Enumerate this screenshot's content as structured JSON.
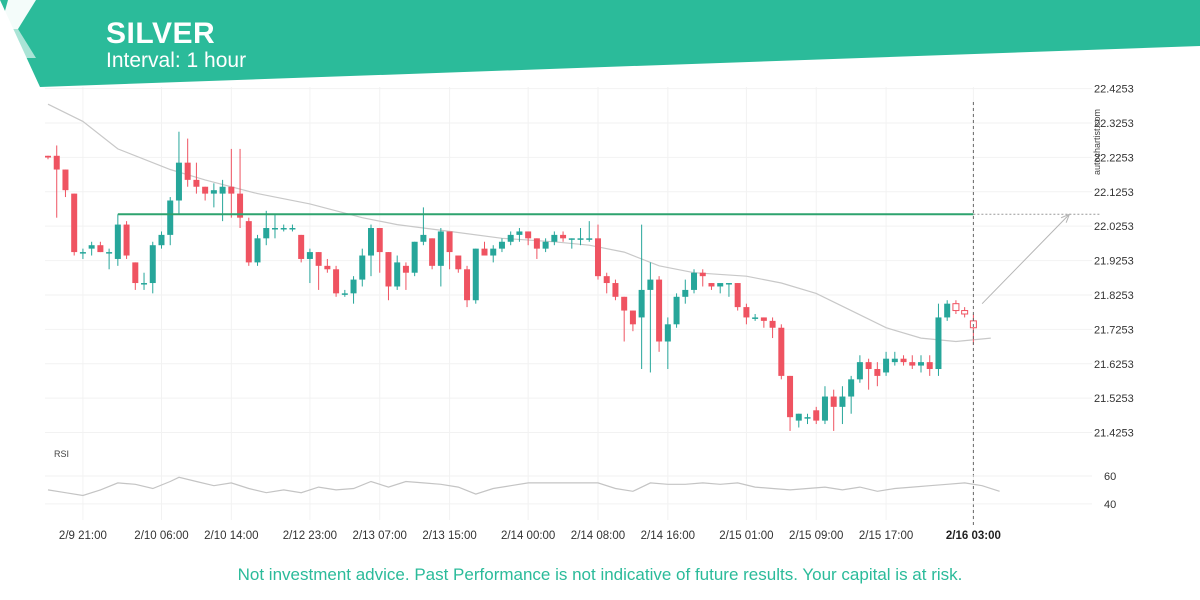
{
  "header": {
    "symbol": "SILVER",
    "interval": "Interval: 1 hour"
  },
  "watermark": "autochartist.com",
  "footer": {
    "disclaimer": "Not investment advice. Past Performance is not indicative of future results. Your capital is at risk."
  },
  "colors": {
    "brand": "#2bbb9a",
    "bull": "#26a69a",
    "bear": "#ef5361",
    "level": "#2ea36f",
    "ma": "#c8c8c8"
  },
  "chart_data": {
    "type": "candlestick",
    "title": "SILVER",
    "subtitle": "Interval: 1 hour",
    "ylim": [
      21.36,
      22.43
    ],
    "y_ticks": [
      22.4253,
      22.3253,
      22.2253,
      22.1253,
      22.0253,
      21.9253,
      21.8253,
      21.7253,
      21.6253,
      21.5253,
      21.4253
    ],
    "x_ticks": [
      {
        "label": "2/9 21:00",
        "index": 4
      },
      {
        "label": "2/10 06:00",
        "index": 13
      },
      {
        "label": "2/10 14:00",
        "index": 21
      },
      {
        "label": "2/12 23:00",
        "index": 30
      },
      {
        "label": "2/13 07:00",
        "index": 38
      },
      {
        "label": "2/13 15:00",
        "index": 46
      },
      {
        "label": "2/14 00:00",
        "index": 55
      },
      {
        "label": "2/14 08:00",
        "index": 63
      },
      {
        "label": "2/14 16:00",
        "index": 71
      },
      {
        "label": "2/15 01:00",
        "index": 80
      },
      {
        "label": "2/15 09:00",
        "index": 88
      },
      {
        "label": "2/15 17:00",
        "index": 96
      },
      {
        "label": "2/16 03:00",
        "index": 106,
        "highlight": true
      }
    ],
    "candles": [
      {
        "o": 22.23,
        "h": 22.23,
        "l": 22.22,
        "c": 22.225
      },
      {
        "o": 22.23,
        "h": 22.26,
        "l": 22.05,
        "c": 22.19
      },
      {
        "o": 22.19,
        "h": 22.19,
        "l": 22.11,
        "c": 22.13
      },
      {
        "o": 22.12,
        "h": 22.12,
        "l": 21.94,
        "c": 21.95
      },
      {
        "o": 21.95,
        "h": 21.96,
        "l": 21.93,
        "c": 21.95
      },
      {
        "o": 21.96,
        "h": 21.98,
        "l": 21.94,
        "c": 21.97
      },
      {
        "o": 21.97,
        "h": 21.98,
        "l": 21.95,
        "c": 21.95
      },
      {
        "o": 21.95,
        "h": 21.96,
        "l": 21.9,
        "c": 21.95
      },
      {
        "o": 21.93,
        "h": 22.06,
        "l": 21.91,
        "c": 22.03
      },
      {
        "o": 22.03,
        "h": 22.04,
        "l": 21.93,
        "c": 21.94
      },
      {
        "o": 21.92,
        "h": 21.92,
        "l": 21.84,
        "c": 21.86
      },
      {
        "o": 21.86,
        "h": 21.89,
        "l": 21.84,
        "c": 21.86
      },
      {
        "o": 21.86,
        "h": 21.98,
        "l": 21.83,
        "c": 21.97
      },
      {
        "o": 21.97,
        "h": 22.01,
        "l": 21.96,
        "c": 22.0
      },
      {
        "o": 22.0,
        "h": 22.11,
        "l": 21.97,
        "c": 22.1
      },
      {
        "o": 22.1,
        "h": 22.3,
        "l": 22.06,
        "c": 22.21
      },
      {
        "o": 22.21,
        "h": 22.28,
        "l": 22.14,
        "c": 22.16
      },
      {
        "o": 22.16,
        "h": 22.21,
        "l": 22.12,
        "c": 22.14
      },
      {
        "o": 22.14,
        "h": 22.14,
        "l": 22.1,
        "c": 22.12
      },
      {
        "o": 22.12,
        "h": 22.15,
        "l": 22.08,
        "c": 22.13
      },
      {
        "o": 22.12,
        "h": 22.16,
        "l": 22.04,
        "c": 22.14
      },
      {
        "o": 22.14,
        "h": 22.25,
        "l": 22.05,
        "c": 22.12
      },
      {
        "o": 22.12,
        "h": 22.25,
        "l": 22.02,
        "c": 22.05
      },
      {
        "o": 22.04,
        "h": 22.05,
        "l": 21.91,
        "c": 21.92
      },
      {
        "o": 21.92,
        "h": 22.0,
        "l": 21.91,
        "c": 21.99
      },
      {
        "o": 21.99,
        "h": 22.07,
        "l": 21.97,
        "c": 22.02
      },
      {
        "o": 22.02,
        "h": 22.06,
        "l": 21.99,
        "c": 22.02
      },
      {
        "o": 22.02,
        "h": 22.03,
        "l": 22.01,
        "c": 22.02
      },
      {
        "o": 22.02,
        "h": 22.03,
        "l": 22.01,
        "c": 22.02
      },
      {
        "o": 22.0,
        "h": 22.0,
        "l": 21.92,
        "c": 21.93
      },
      {
        "o": 21.93,
        "h": 21.96,
        "l": 21.86,
        "c": 21.95
      },
      {
        "o": 21.95,
        "h": 21.95,
        "l": 21.84,
        "c": 21.91
      },
      {
        "o": 21.91,
        "h": 21.93,
        "l": 21.89,
        "c": 21.9
      },
      {
        "o": 21.9,
        "h": 21.91,
        "l": 21.82,
        "c": 21.83
      },
      {
        "o": 21.83,
        "h": 21.84,
        "l": 21.82,
        "c": 21.83
      },
      {
        "o": 21.83,
        "h": 21.88,
        "l": 21.8,
        "c": 21.87
      },
      {
        "o": 21.87,
        "h": 21.96,
        "l": 21.85,
        "c": 21.94
      },
      {
        "o": 21.94,
        "h": 22.03,
        "l": 21.88,
        "c": 22.02
      },
      {
        "o": 22.02,
        "h": 22.02,
        "l": 21.89,
        "c": 21.95
      },
      {
        "o": 21.95,
        "h": 21.95,
        "l": 21.81,
        "c": 21.85
      },
      {
        "o": 21.85,
        "h": 21.94,
        "l": 21.84,
        "c": 21.92
      },
      {
        "o": 21.91,
        "h": 21.92,
        "l": 21.84,
        "c": 21.89
      },
      {
        "o": 21.89,
        "h": 21.98,
        "l": 21.88,
        "c": 21.98
      },
      {
        "o": 21.98,
        "h": 22.08,
        "l": 21.97,
        "c": 22.0
      },
      {
        "o": 21.99,
        "h": 21.99,
        "l": 21.9,
        "c": 21.91
      },
      {
        "o": 21.91,
        "h": 22.02,
        "l": 21.85,
        "c": 22.01
      },
      {
        "o": 22.01,
        "h": 22.01,
        "l": 21.9,
        "c": 21.95
      },
      {
        "o": 21.94,
        "h": 21.94,
        "l": 21.89,
        "c": 21.9
      },
      {
        "o": 21.9,
        "h": 21.91,
        "l": 21.79,
        "c": 21.81
      },
      {
        "o": 21.81,
        "h": 21.96,
        "l": 21.8,
        "c": 21.96
      },
      {
        "o": 21.96,
        "h": 21.98,
        "l": 21.95,
        "c": 21.94
      },
      {
        "o": 21.94,
        "h": 21.97,
        "l": 21.92,
        "c": 21.96
      },
      {
        "o": 21.96,
        "h": 21.99,
        "l": 21.95,
        "c": 21.98
      },
      {
        "o": 21.98,
        "h": 22.01,
        "l": 21.97,
        "c": 22.0
      },
      {
        "o": 22.0,
        "h": 22.02,
        "l": 21.98,
        "c": 22.01
      },
      {
        "o": 22.01,
        "h": 22.01,
        "l": 21.97,
        "c": 21.99
      },
      {
        "o": 21.99,
        "h": 21.99,
        "l": 21.93,
        "c": 21.96
      },
      {
        "o": 21.96,
        "h": 21.99,
        "l": 21.95,
        "c": 21.98
      },
      {
        "o": 21.98,
        "h": 22.01,
        "l": 21.97,
        "c": 22.0
      },
      {
        "o": 22.0,
        "h": 22.01,
        "l": 21.98,
        "c": 21.99
      },
      {
        "o": 21.99,
        "h": 21.99,
        "l": 21.96,
        "c": 21.99
      },
      {
        "o": 21.99,
        "h": 22.02,
        "l": 21.97,
        "c": 21.99
      },
      {
        "o": 21.99,
        "h": 22.04,
        "l": 21.98,
        "c": 21.99
      },
      {
        "o": 21.99,
        "h": 22.03,
        "l": 21.87,
        "c": 21.88
      },
      {
        "o": 21.88,
        "h": 21.89,
        "l": 21.83,
        "c": 21.86
      },
      {
        "o": 21.86,
        "h": 21.87,
        "l": 21.81,
        "c": 21.82
      },
      {
        "o": 21.82,
        "h": 21.82,
        "l": 21.69,
        "c": 21.78
      },
      {
        "o": 21.78,
        "h": 21.78,
        "l": 21.72,
        "c": 21.74
      },
      {
        "o": 21.76,
        "h": 22.03,
        "l": 21.61,
        "c": 21.84
      },
      {
        "o": 21.84,
        "h": 21.92,
        "l": 21.6,
        "c": 21.87
      },
      {
        "o": 21.87,
        "h": 21.88,
        "l": 21.66,
        "c": 21.69
      },
      {
        "o": 21.69,
        "h": 21.76,
        "l": 21.61,
        "c": 21.74
      },
      {
        "o": 21.74,
        "h": 21.83,
        "l": 21.73,
        "c": 21.82
      },
      {
        "o": 21.82,
        "h": 21.87,
        "l": 21.8,
        "c": 21.84
      },
      {
        "o": 21.84,
        "h": 21.9,
        "l": 21.83,
        "c": 21.89
      },
      {
        "o": 21.89,
        "h": 21.9,
        "l": 21.85,
        "c": 21.88
      },
      {
        "o": 21.86,
        "h": 21.86,
        "l": 21.84,
        "c": 21.85
      },
      {
        "o": 21.85,
        "h": 21.85,
        "l": 21.83,
        "c": 21.86
      },
      {
        "o": 21.86,
        "h": 21.86,
        "l": 21.82,
        "c": 21.86
      },
      {
        "o": 21.86,
        "h": 21.86,
        "l": 21.78,
        "c": 21.79
      },
      {
        "o": 21.79,
        "h": 21.8,
        "l": 21.74,
        "c": 21.76
      },
      {
        "o": 21.76,
        "h": 21.77,
        "l": 21.75,
        "c": 21.76
      },
      {
        "o": 21.76,
        "h": 21.76,
        "l": 21.73,
        "c": 21.75
      },
      {
        "o": 21.75,
        "h": 21.76,
        "l": 21.7,
        "c": 21.73
      },
      {
        "o": 21.73,
        "h": 21.74,
        "l": 21.58,
        "c": 21.59
      },
      {
        "o": 21.59,
        "h": 21.59,
        "l": 21.43,
        "c": 21.47
      },
      {
        "o": 21.46,
        "h": 21.48,
        "l": 21.44,
        "c": 21.48
      },
      {
        "o": 21.47,
        "h": 21.48,
        "l": 21.45,
        "c": 21.47
      },
      {
        "o": 21.49,
        "h": 21.5,
        "l": 21.45,
        "c": 21.46
      },
      {
        "o": 21.46,
        "h": 21.56,
        "l": 21.45,
        "c": 21.53
      },
      {
        "o": 21.53,
        "h": 21.55,
        "l": 21.43,
        "c": 21.5
      },
      {
        "o": 21.5,
        "h": 21.56,
        "l": 21.45,
        "c": 21.53
      },
      {
        "o": 21.53,
        "h": 21.59,
        "l": 21.48,
        "c": 21.58
      },
      {
        "o": 21.58,
        "h": 21.65,
        "l": 21.57,
        "c": 21.63
      },
      {
        "o": 21.63,
        "h": 21.64,
        "l": 21.55,
        "c": 21.61
      },
      {
        "o": 21.61,
        "h": 21.63,
        "l": 21.56,
        "c": 21.59
      },
      {
        "o": 21.6,
        "h": 21.66,
        "l": 21.59,
        "c": 21.64
      },
      {
        "o": 21.63,
        "h": 21.66,
        "l": 21.62,
        "c": 21.64
      },
      {
        "o": 21.64,
        "h": 21.65,
        "l": 21.62,
        "c": 21.63
      },
      {
        "o": 21.63,
        "h": 21.65,
        "l": 21.61,
        "c": 21.62
      },
      {
        "o": 21.62,
        "h": 21.65,
        "l": 21.6,
        "c": 21.63
      },
      {
        "o": 21.63,
        "h": 21.65,
        "l": 21.59,
        "c": 21.61
      },
      {
        "o": 21.61,
        "h": 21.8,
        "l": 21.59,
        "c": 21.76
      },
      {
        "o": 21.76,
        "h": 21.81,
        "l": 21.75,
        "c": 21.8
      },
      {
        "o": 21.8,
        "h": 21.81,
        "l": 21.77,
        "c": 21.78
      },
      {
        "o": 21.78,
        "h": 21.79,
        "l": 21.76,
        "c": 21.77
      },
      {
        "o": 21.75,
        "h": 21.77,
        "l": 21.68,
        "c": 21.73
      }
    ],
    "moving_average": [
      [
        0,
        22.38
      ],
      [
        4,
        22.33
      ],
      [
        8,
        22.25
      ],
      [
        14,
        22.19
      ],
      [
        18,
        22.16
      ],
      [
        24,
        22.12
      ],
      [
        30,
        22.09
      ],
      [
        36,
        22.05
      ],
      [
        40,
        22.03
      ],
      [
        46,
        22.01
      ],
      [
        52,
        21.99
      ],
      [
        58,
        21.98
      ],
      [
        62,
        21.97
      ],
      [
        66,
        21.95
      ],
      [
        70,
        21.91
      ],
      [
        74,
        21.89
      ],
      [
        80,
        21.88
      ],
      [
        84,
        21.86
      ],
      [
        88,
        21.83
      ],
      [
        92,
        21.78
      ],
      [
        96,
        21.73
      ],
      [
        100,
        21.7
      ],
      [
        104,
        21.69
      ],
      [
        108,
        21.7
      ]
    ],
    "resistance_level": {
      "value": 22.06,
      "start_index": 8
    },
    "forecast_arrow": {
      "from": [
        107,
        21.8
      ],
      "to": [
        117,
        22.06
      ]
    },
    "marker_index": 106,
    "rsi": {
      "label": "RSI",
      "ticks": [
        60,
        40
      ],
      "ylim": [
        32,
        70
      ],
      "values": [
        [
          0,
          50
        ],
        [
          2,
          48
        ],
        [
          4,
          46
        ],
        [
          6,
          50
        ],
        [
          8,
          55
        ],
        [
          10,
          54
        ],
        [
          12,
          51
        ],
        [
          14,
          56
        ],
        [
          15,
          59
        ],
        [
          17,
          56
        ],
        [
          19,
          53
        ],
        [
          21,
          55
        ],
        [
          23,
          51
        ],
        [
          25,
          48
        ],
        [
          27,
          50
        ],
        [
          29,
          48
        ],
        [
          31,
          52
        ],
        [
          33,
          50
        ],
        [
          35,
          51
        ],
        [
          37,
          56
        ],
        [
          39,
          52
        ],
        [
          41,
          56
        ],
        [
          43,
          55
        ],
        [
          45,
          54
        ],
        [
          47,
          52
        ],
        [
          49,
          47
        ],
        [
          51,
          51
        ],
        [
          53,
          53
        ],
        [
          55,
          55
        ],
        [
          57,
          55
        ],
        [
          59,
          55
        ],
        [
          61,
          55
        ],
        [
          63,
          55
        ],
        [
          65,
          51
        ],
        [
          67,
          49
        ],
        [
          69,
          55
        ],
        [
          71,
          54
        ],
        [
          73,
          54
        ],
        [
          75,
          55
        ],
        [
          77,
          54
        ],
        [
          79,
          55
        ],
        [
          81,
          52
        ],
        [
          83,
          51
        ],
        [
          85,
          50
        ],
        [
          87,
          51
        ],
        [
          89,
          52
        ],
        [
          91,
          50
        ],
        [
          93,
          52
        ],
        [
          95,
          49
        ],
        [
          97,
          51
        ],
        [
          99,
          52
        ],
        [
          101,
          53
        ],
        [
          103,
          54
        ],
        [
          105,
          55
        ],
        [
          107,
          53
        ],
        [
          109,
          49
        ]
      ]
    }
  }
}
